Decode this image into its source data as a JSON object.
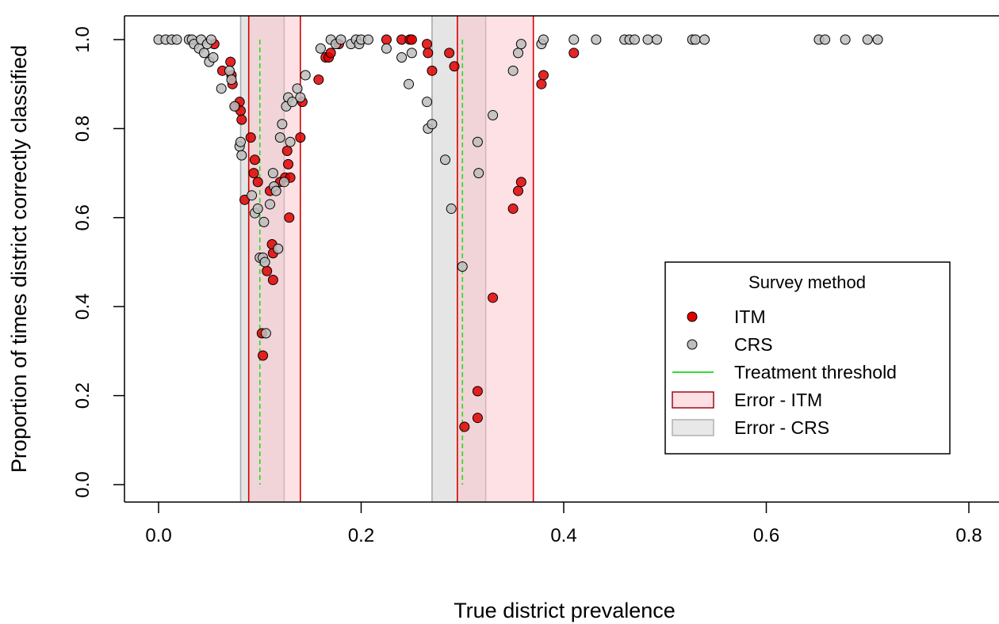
{
  "chart_data": {
    "type": "scatter",
    "xlabel": "True district prevalence",
    "ylabel": "Proportion of times district correctly classified",
    "xlim": [
      -0.03,
      0.84
    ],
    "ylim": [
      -0.04,
      1.03
    ],
    "x_ticks": [
      "0.0",
      "0.2",
      "0.4",
      "0.6",
      "0.8"
    ],
    "x_tick_values": [
      0,
      0.2,
      0.4,
      0.6,
      0.8
    ],
    "y_ticks": [
      "0.0",
      "0.2",
      "0.4",
      "0.6",
      "0.8",
      "1.0"
    ],
    "y_tick_values": [
      0,
      0.2,
      0.4,
      0.6,
      0.8,
      1.0
    ],
    "grid": false,
    "legend_placement": "right",
    "thresholds": [
      0.1,
      0.3
    ],
    "error_bands": [
      {
        "series": "Error - CRS",
        "x0": 0.081,
        "x1": 0.124
      },
      {
        "series": "Error - CRS",
        "x0": 0.27,
        "x1": 0.323
      },
      {
        "series": "Error - ITM",
        "x0": 0.089,
        "x1": 0.14
      },
      {
        "series": "Error - ITM",
        "x0": 0.295,
        "x1": 0.37
      }
    ],
    "series": [
      {
        "name": "ITM",
        "color": "#e00000",
        "points": [
          [
            0.055,
            0.99
          ],
          [
            0.063,
            0.93
          ],
          [
            0.071,
            0.95
          ],
          [
            0.072,
            0.92
          ],
          [
            0.073,
            0.9
          ],
          [
            0.076,
            0.85
          ],
          [
            0.08,
            0.86
          ],
          [
            0.081,
            0.84
          ],
          [
            0.082,
            0.82
          ],
          [
            0.085,
            0.64
          ],
          [
            0.091,
            0.78
          ],
          [
            0.094,
            0.7
          ],
          [
            0.095,
            0.73
          ],
          [
            0.098,
            0.68
          ],
          [
            0.102,
            0.34
          ],
          [
            0.103,
            0.29
          ],
          [
            0.107,
            0.48
          ],
          [
            0.11,
            0.66
          ],
          [
            0.112,
            0.54
          ],
          [
            0.113,
            0.52
          ],
          [
            0.113,
            0.46
          ],
          [
            0.12,
            0.68
          ],
          [
            0.125,
            0.69
          ],
          [
            0.127,
            0.75
          ],
          [
            0.128,
            0.72
          ],
          [
            0.129,
            0.6
          ],
          [
            0.13,
            0.69
          ],
          [
            0.14,
            0.78
          ],
          [
            0.142,
            0.86
          ],
          [
            0.158,
            0.91
          ],
          [
            0.165,
            0.96
          ],
          [
            0.168,
            0.96
          ],
          [
            0.17,
            0.97
          ],
          [
            0.178,
            0.99
          ],
          [
            0.225,
            1.0
          ],
          [
            0.24,
            1.0
          ],
          [
            0.248,
            1.0
          ],
          [
            0.25,
            1.0
          ],
          [
            0.265,
            0.99
          ],
          [
            0.266,
            0.97
          ],
          [
            0.27,
            0.93
          ],
          [
            0.287,
            0.97
          ],
          [
            0.292,
            0.94
          ],
          [
            0.302,
            0.13
          ],
          [
            0.315,
            0.21
          ],
          [
            0.315,
            0.15
          ],
          [
            0.33,
            0.42
          ],
          [
            0.35,
            0.62
          ],
          [
            0.355,
            0.66
          ],
          [
            0.358,
            0.68
          ],
          [
            0.378,
            0.9
          ],
          [
            0.38,
            0.92
          ],
          [
            0.41,
            0.97
          ]
        ]
      },
      {
        "name": "CRS",
        "color": "#bdbdbd",
        "points": [
          [
            0.0,
            1.0
          ],
          [
            0.007,
            1.0
          ],
          [
            0.013,
            1.0
          ],
          [
            0.018,
            1.0
          ],
          [
            0.03,
            1.0
          ],
          [
            0.033,
            1.0
          ],
          [
            0.035,
            0.99
          ],
          [
            0.04,
            0.98
          ],
          [
            0.042,
            1.0
          ],
          [
            0.045,
            0.97
          ],
          [
            0.048,
            0.99
          ],
          [
            0.05,
            0.95
          ],
          [
            0.052,
            1.0
          ],
          [
            0.054,
            0.96
          ],
          [
            0.062,
            0.89
          ],
          [
            0.07,
            0.93
          ],
          [
            0.072,
            0.91
          ],
          [
            0.075,
            0.85
          ],
          [
            0.08,
            0.76
          ],
          [
            0.081,
            0.77
          ],
          [
            0.082,
            0.74
          ],
          [
            0.092,
            0.65
          ],
          [
            0.095,
            0.61
          ],
          [
            0.098,
            0.62
          ],
          [
            0.1,
            0.51
          ],
          [
            0.103,
            0.51
          ],
          [
            0.104,
            0.59
          ],
          [
            0.105,
            0.5
          ],
          [
            0.106,
            0.34
          ],
          [
            0.11,
            0.63
          ],
          [
            0.113,
            0.7
          ],
          [
            0.114,
            0.67
          ],
          [
            0.116,
            0.66
          ],
          [
            0.118,
            0.53
          ],
          [
            0.12,
            0.78
          ],
          [
            0.122,
            0.81
          ],
          [
            0.124,
            0.68
          ],
          [
            0.126,
            0.85
          ],
          [
            0.128,
            0.87
          ],
          [
            0.13,
            0.77
          ],
          [
            0.132,
            0.86
          ],
          [
            0.137,
            0.89
          ],
          [
            0.14,
            0.87
          ],
          [
            0.145,
            0.92
          ],
          [
            0.16,
            0.98
          ],
          [
            0.17,
            1.0
          ],
          [
            0.175,
            0.99
          ],
          [
            0.18,
            1.0
          ],
          [
            0.19,
            0.99
          ],
          [
            0.195,
            1.0
          ],
          [
            0.198,
            0.99
          ],
          [
            0.2,
            1.0
          ],
          [
            0.207,
            1.0
          ],
          [
            0.225,
            0.98
          ],
          [
            0.24,
            0.96
          ],
          [
            0.247,
            0.9
          ],
          [
            0.25,
            0.97
          ],
          [
            0.265,
            0.86
          ],
          [
            0.266,
            0.8
          ],
          [
            0.27,
            0.81
          ],
          [
            0.283,
            0.73
          ],
          [
            0.289,
            0.62
          ],
          [
            0.3,
            0.49
          ],
          [
            0.315,
            0.77
          ],
          [
            0.316,
            0.7
          ],
          [
            0.33,
            0.83
          ],
          [
            0.35,
            0.93
          ],
          [
            0.355,
            0.97
          ],
          [
            0.358,
            0.99
          ],
          [
            0.378,
            0.99
          ],
          [
            0.38,
            1.0
          ],
          [
            0.41,
            1.0
          ],
          [
            0.432,
            1.0
          ],
          [
            0.46,
            1.0
          ],
          [
            0.465,
            1.0
          ],
          [
            0.47,
            1.0
          ],
          [
            0.483,
            1.0
          ],
          [
            0.492,
            1.0
          ],
          [
            0.527,
            1.0
          ],
          [
            0.53,
            1.0
          ],
          [
            0.539,
            1.0
          ],
          [
            0.652,
            1.0
          ],
          [
            0.658,
            1.0
          ],
          [
            0.678,
            1.0
          ],
          [
            0.7,
            1.0
          ],
          [
            0.71,
            1.0
          ]
        ]
      }
    ],
    "legend": {
      "title": "Survey method",
      "entries": [
        {
          "label": "ITM",
          "kind": "point",
          "color": "#e00000"
        },
        {
          "label": "CRS",
          "kind": "point",
          "color": "#bdbdbd"
        },
        {
          "label": "Treatment threshold",
          "kind": "line",
          "color": "#33dd33"
        },
        {
          "label": "Error - ITM",
          "kind": "band",
          "color": "#fde0e3"
        },
        {
          "label": "Error - CRS",
          "kind": "band",
          "color": "#e8e8e8"
        }
      ]
    }
  }
}
